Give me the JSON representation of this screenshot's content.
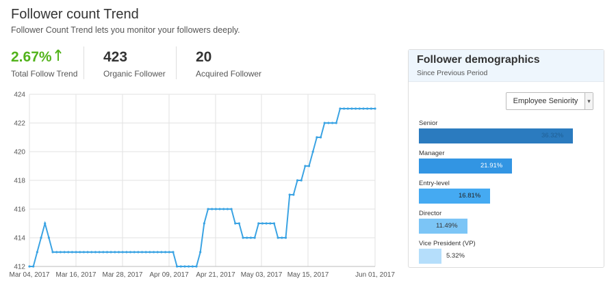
{
  "header": {
    "title": "Follower count Trend",
    "subtitle": "Follower Count Trend lets you monitor your followers deeply."
  },
  "kpis": [
    {
      "value": "2.67%",
      "label": "Total Follow Trend",
      "trend_icon": "arrow-up-icon",
      "color": "#52b31b"
    },
    {
      "value": "423",
      "label": "Organic Follower"
    },
    {
      "value": "20",
      "label": "Acquired Follower"
    }
  ],
  "chart_data": {
    "type": "line",
    "xlabel": "",
    "ylabel": "",
    "ylim": [
      412,
      424
    ],
    "yticks": [
      412,
      414,
      416,
      418,
      420,
      422,
      424
    ],
    "xticks": [
      "Mar 04, 2017",
      "Mar 16, 2017",
      "Mar 28, 2017",
      "Apr 09, 2017",
      "Apr 21, 2017",
      "May 03, 2017",
      "May 15, 2017",
      "Jun 01, 2017"
    ],
    "grid": true,
    "line_color": "#3aa3e3",
    "series": [
      {
        "x_start": "Mar 04, 2017",
        "x_end": "Jun 01, 2017",
        "values": [
          412,
          412,
          413,
          414,
          415,
          414,
          413,
          413,
          413,
          413,
          413,
          413,
          413,
          413,
          413,
          413,
          413,
          413,
          413,
          413,
          413,
          413,
          413,
          413,
          413,
          413,
          413,
          413,
          413,
          413,
          413,
          413,
          413,
          413,
          413,
          413,
          413,
          413,
          412,
          412,
          412,
          412,
          412,
          412,
          413,
          415,
          416,
          416,
          416,
          416,
          416,
          416,
          416,
          415,
          415,
          414,
          414,
          414,
          414,
          415,
          415,
          415,
          415,
          415,
          414,
          414,
          414,
          417,
          417,
          418,
          418,
          419,
          419,
          420,
          421,
          421,
          422,
          422,
          422,
          422,
          423,
          423,
          423,
          423,
          423,
          423,
          423,
          423,
          423,
          423
        ]
      }
    ]
  },
  "demographics": {
    "title": "Follower demographics",
    "subtitle": "Since Previous Period",
    "select": {
      "value": "Employee Seniority",
      "caret_icon": "chevron-down-icon"
    },
    "max_percent": 36.32,
    "bars": [
      {
        "label": "Senior",
        "value": "36.32%",
        "percent": 36.32,
        "color": "#2b7bbf",
        "text_color": "#1f5f94"
      },
      {
        "label": "Manager",
        "value": "21.91%",
        "percent": 21.91,
        "color": "#3295e3",
        "text_color": "#ffffff"
      },
      {
        "label": "Entry-level",
        "value": "16.81%",
        "percent": 16.81,
        "color": "#45aaf2",
        "text_color": "#222222"
      },
      {
        "label": "Director",
        "value": "11.49%",
        "percent": 11.49,
        "color": "#7cc5f6",
        "text_color": "#333333"
      },
      {
        "label": "Vice President (VP)",
        "value": "5.32%",
        "percent": 5.32,
        "color": "#b5defb",
        "text_color": "#333333"
      }
    ]
  }
}
